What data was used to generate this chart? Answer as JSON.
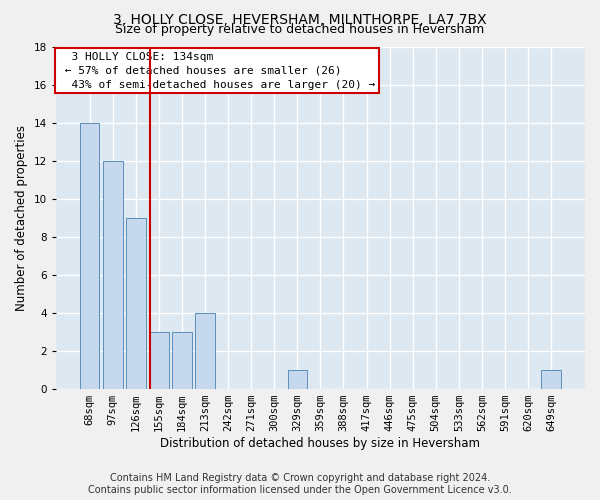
{
  "title": "3, HOLLY CLOSE, HEVERSHAM, MILNTHORPE, LA7 7BX",
  "subtitle": "Size of property relative to detached houses in Heversham",
  "xlabel": "Distribution of detached houses by size in Heversham",
  "ylabel": "Number of detached properties",
  "bin_labels": [
    "68sqm",
    "97sqm",
    "126sqm",
    "155sqm",
    "184sqm",
    "213sqm",
    "242sqm",
    "271sqm",
    "300sqm",
    "329sqm",
    "359sqm",
    "388sqm",
    "417sqm",
    "446sqm",
    "475sqm",
    "504sqm",
    "533sqm",
    "562sqm",
    "591sqm",
    "620sqm",
    "649sqm"
  ],
  "bar_values": [
    14,
    12,
    9,
    3,
    3,
    4,
    0,
    0,
    0,
    1,
    0,
    0,
    0,
    0,
    0,
    0,
    0,
    0,
    0,
    0,
    1
  ],
  "bar_color": "#c5d8ed",
  "bar_edge_color": "#5a8fba",
  "annotation_text": "  3 HOLLY CLOSE: 134sqm\n ← 57% of detached houses are smaller (26)\n  43% of semi-detached houses are larger (20) →",
  "vline_x": 2.62,
  "vline_color": "#cc0000",
  "annotation_box_color": "#ffffff",
  "annotation_box_edge_color": "#cc0000",
  "ylim": [
    0,
    18
  ],
  "yticks": [
    0,
    2,
    4,
    6,
    8,
    10,
    12,
    14,
    16,
    18
  ],
  "footer1": "Contains HM Land Registry data © Crown copyright and database right 2024.",
  "footer2": "Contains public sector information licensed under the Open Government Licence v3.0.",
  "bg_color": "#dde8f0",
  "fig_color": "#f0f0f0",
  "grid_color": "#ffffff",
  "title_fontsize": 10,
  "subtitle_fontsize": 9,
  "axis_label_fontsize": 8.5,
  "tick_fontsize": 7.5,
  "annotation_fontsize": 8,
  "footer_fontsize": 7
}
